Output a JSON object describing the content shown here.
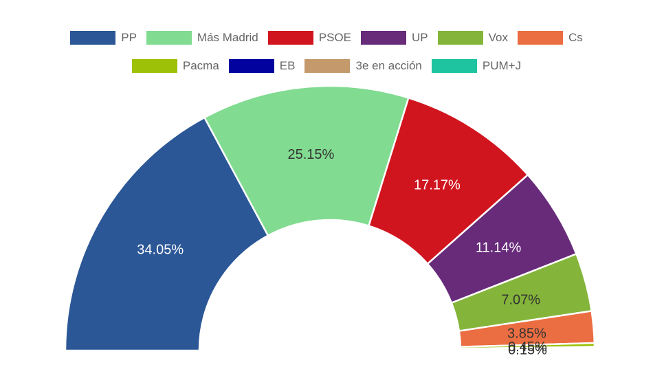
{
  "chart_data": {
    "type": "pie",
    "subtype": "half-doughnut",
    "title": "",
    "legend_position": "top",
    "series": [
      {
        "name": "PP",
        "value": 34.05,
        "label": "34.05%",
        "color": "#2b5797",
        "label_color": "#ffffff"
      },
      {
        "name": "Más Madrid",
        "value": 25.15,
        "label": "25.15%",
        "color": "#81db91",
        "label_color": "#333333"
      },
      {
        "name": "PSOE",
        "value": 17.17,
        "label": "17.17%",
        "color": "#d1151f",
        "label_color": "#ffffff"
      },
      {
        "name": "UP",
        "value": 11.14,
        "label": "11.14%",
        "color": "#672b7a",
        "label_color": "#ffffff"
      },
      {
        "name": "Vox",
        "value": 7.07,
        "label": "7.07%",
        "color": "#84b53a",
        "label_color": "#333333"
      },
      {
        "name": "Cs",
        "value": 3.85,
        "label": "3.85%",
        "color": "#eb6d42",
        "label_color": "#333333"
      },
      {
        "name": "Pacma",
        "value": 0.45,
        "label": "0.45%",
        "color": "#9cc107",
        "label_color": "#333333"
      },
      {
        "name": "EB",
        "value": 0.2,
        "label": "",
        "color": "#02029e",
        "label_color": "#333333"
      },
      {
        "name": "3e en acción",
        "value": 0.15,
        "label": "0.15%",
        "color": "#c49a6c",
        "label_color": "#333333"
      },
      {
        "name": "PUM+J",
        "value": 0.1,
        "label": "",
        "color": "#1ec4a0",
        "label_color": "#333333"
      }
    ]
  }
}
